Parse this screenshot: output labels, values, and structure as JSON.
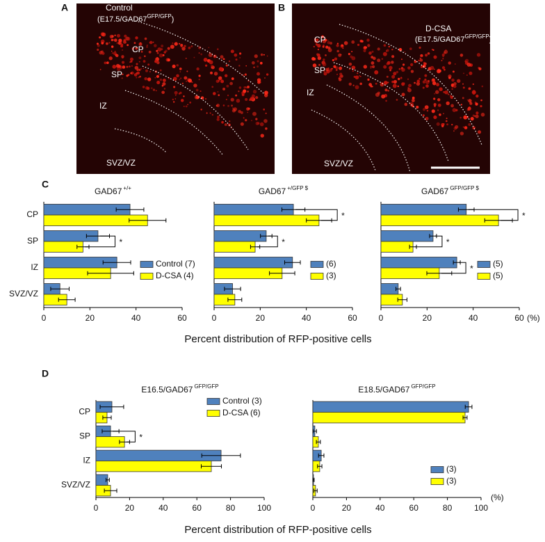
{
  "figure": {
    "panels": {
      "a": "A",
      "b": "B",
      "c": "C",
      "d": "D"
    },
    "images": [
      {
        "label": "Control",
        "sub_pre": "(E17.5/GAD67",
        "sub_sup": "GFP/GFP",
        "sub_post": ")",
        "regions": [
          "CP",
          "SP",
          "IZ",
          "SVZ/VZ"
        ]
      },
      {
        "label": "D-CSA",
        "sub_pre": "(E17.5/GAD67",
        "sub_sup": "GFP/GFP",
        "sub_post": ")",
        "regions": [
          "CP",
          "SP",
          "IZ",
          "SVZ/VZ"
        ]
      }
    ],
    "row_c": {
      "xlabel": "Percent distribution of RFP-positive cells",
      "unit": "(%)"
    },
    "row_d": {
      "xlabel": "Percent distribution of RFP-positive cells",
      "unit": "(%)"
    }
  },
  "chart_data": [
    {
      "type": "bar",
      "orientation": "horizontal",
      "title": "GAD67",
      "title_sup": "+/+",
      "categories": [
        "CP",
        "SP",
        "IZ",
        "SVZ/VZ"
      ],
      "series": [
        {
          "name": "Control (7)",
          "color": "#4f81bd",
          "values": [
            37.4,
            23.5,
            31.7,
            7
          ],
          "errors": [
            6,
            5,
            6,
            4
          ]
        },
        {
          "name": "D-CSA (4)",
          "color": "#ffff00",
          "values": [
            45,
            17,
            29,
            10
          ],
          "errors": [
            8,
            2.6,
            10,
            3.6
          ]
        }
      ],
      "significance": [
        null,
        "*",
        null,
        null
      ],
      "xlim": [
        0,
        60
      ],
      "xticks": [
        0,
        20,
        40,
        60
      ],
      "legend": "lower right"
    },
    {
      "type": "bar",
      "orientation": "horizontal",
      "title": "GAD67",
      "title_sup": "+/GFP $",
      "categories": [
        null,
        null,
        null,
        null
      ],
      "series": [
        {
          "name": "(6)",
          "color": "#4f81bd",
          "values": [
            34.4,
            22.6,
            34,
            8
          ],
          "errors": [
            5,
            2.5,
            3.4,
            3.5
          ]
        },
        {
          "name": "(3)",
          "color": "#ffff00",
          "values": [
            45.5,
            17.8,
            29.5,
            9
          ],
          "errors": [
            5.5,
            2,
            5.5,
            3
          ]
        }
      ],
      "significance": [
        "*",
        "*",
        null,
        null
      ],
      "xlim": [
        0,
        60
      ],
      "xticks": [
        0,
        20,
        40,
        60
      ],
      "legend": "lower right"
    },
    {
      "type": "bar",
      "orientation": "horizontal",
      "title": "GAD67",
      "title_sup": "GFP/GFP $",
      "categories": [
        null,
        null,
        null,
        null
      ],
      "series": [
        {
          "name": "(5)",
          "color": "#4f81bd",
          "values": [
            37,
            22.6,
            32.9,
            7.5
          ],
          "errors": [
            3.4,
            1.5,
            1.5,
            1
          ]
        },
        {
          "name": "(5)",
          "color": "#ffff00",
          "values": [
            51,
            13.9,
            25.3,
            9.3
          ],
          "errors": [
            6,
            1.5,
            5.4,
            2
          ]
        }
      ],
      "significance": [
        "*",
        "*",
        "*",
        null
      ],
      "xlim": [
        0,
        60
      ],
      "xticks": [
        0,
        20,
        40,
        60
      ],
      "legend": "lower right"
    },
    {
      "type": "bar",
      "orientation": "horizontal",
      "title": "E16.5/GAD67",
      "title_sup": "GFP/GFP",
      "categories": [
        "CP",
        "SP",
        "IZ",
        "SVZ/VZ"
      ],
      "series": [
        {
          "name": "Control (3)",
          "color": "#4f81bd",
          "values": [
            9.5,
            8.7,
            74.4,
            7
          ],
          "errors": [
            7,
            5,
            11.5,
            1
          ]
        },
        {
          "name": "D-CSA (6)",
          "color": "#ffff00",
          "values": [
            6.6,
            17,
            68.6,
            8.7
          ],
          "errors": [
            2.5,
            3,
            6,
            3.7
          ]
        }
      ],
      "significance": [
        null,
        "*",
        null,
        null
      ],
      "xlim": [
        0,
        100
      ],
      "xticks": [
        0,
        20,
        40,
        60,
        80,
        100
      ],
      "legend": "upper right"
    },
    {
      "type": "bar",
      "orientation": "horizontal",
      "title": "E18.5/GAD67",
      "title_sup": "GFP/GFP",
      "categories": [
        null,
        null,
        null,
        null
      ],
      "series": [
        {
          "name": "(3)",
          "color": "#4f81bd",
          "values": [
            92.6,
            1.2,
            5,
            0.4
          ],
          "errors": [
            2,
            1,
            1.6,
            0.4
          ]
        },
        {
          "name": "(3)",
          "color": "#ffff00",
          "values": [
            90.5,
            3.3,
            4.1,
            1.6
          ],
          "errors": [
            1.2,
            1.2,
            1.3,
            1
          ]
        }
      ],
      "significance": [
        null,
        null,
        null,
        null
      ],
      "xlim": [
        0,
        100
      ],
      "xticks": [
        0,
        20,
        40,
        60,
        80,
        100
      ],
      "legend": "lower right"
    }
  ]
}
